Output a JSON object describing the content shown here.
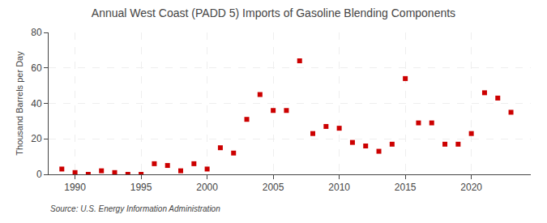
{
  "chart_data": {
    "type": "scatter",
    "title": "Annual West Coast (PADD 5) Imports of Gasoline Blending Components",
    "ylabel": "Thousand Barrels per Day",
    "annotations": [
      "Source: U.S. Energy Information Administration"
    ],
    "x": [
      1989,
      1990,
      1991,
      1992,
      1993,
      1994,
      1995,
      1996,
      1997,
      1998,
      1999,
      2000,
      2001,
      2002,
      2003,
      2004,
      2005,
      2006,
      2007,
      2008,
      2009,
      2010,
      2011,
      2012,
      2013,
      2014,
      2015,
      2016,
      2017,
      2018,
      2019,
      2020,
      2021,
      2022,
      2023
    ],
    "values": [
      3,
      1,
      0,
      2,
      1,
      0,
      0,
      6,
      5,
      2,
      6,
      3,
      15,
      12,
      31,
      45,
      36,
      36,
      64,
      23,
      27,
      26,
      18,
      16,
      13,
      17,
      54,
      29,
      29,
      17,
      17,
      23,
      46,
      43,
      35
    ],
    "color": "#cc0000",
    "marker": "square",
    "xlim": [
      1988,
      2024.5
    ],
    "ylim": [
      0,
      80
    ],
    "xticks": [
      1990,
      1995,
      2000,
      2005,
      2010,
      2015,
      2020
    ],
    "yticks": [
      0,
      20,
      40,
      60,
      80
    ],
    "grid": true
  }
}
